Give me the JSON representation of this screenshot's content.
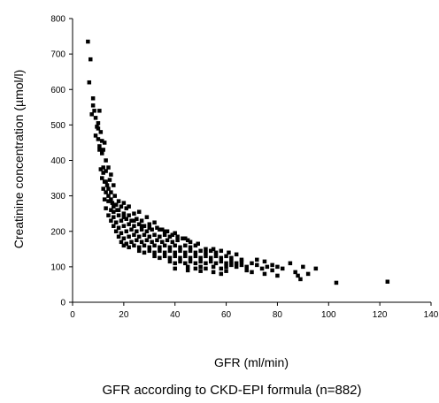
{
  "chart_data": {
    "type": "scatter",
    "title": "",
    "xlabel": "GFR (ml/min)",
    "ylabel": "Creatinine concentration  (µmol/l)",
    "caption": "GFR according to CKD-EPI formula (n=882)",
    "xlim": [
      0,
      140
    ],
    "ylim": [
      0,
      800
    ],
    "xticks": [
      0,
      20,
      40,
      60,
      80,
      100,
      120,
      140
    ],
    "yticks": [
      0,
      100,
      200,
      300,
      400,
      500,
      600,
      700,
      800
    ],
    "grid": false,
    "marker": "square",
    "marker_color": "#000000",
    "series": [
      {
        "points": [
          [
            6,
            735
          ],
          [
            7,
            685
          ],
          [
            6.5,
            620
          ],
          [
            8,
            575
          ],
          [
            8,
            555
          ],
          [
            8.5,
            540
          ],
          [
            7.5,
            530
          ],
          [
            9,
            520
          ],
          [
            9.5,
            495
          ],
          [
            10,
            490
          ],
          [
            10.5,
            540
          ],
          [
            10,
            505
          ],
          [
            9,
            470
          ],
          [
            10,
            460
          ],
          [
            11,
            480
          ],
          [
            11.5,
            455
          ],
          [
            10.5,
            440
          ],
          [
            12,
            430
          ],
          [
            12.5,
            450
          ],
          [
            13,
            400
          ],
          [
            11,
            375
          ],
          [
            12,
            365
          ],
          [
            13,
            370
          ],
          [
            14,
            380
          ],
          [
            11.5,
            350
          ],
          [
            12.5,
            340
          ],
          [
            13.5,
            330
          ],
          [
            14.5,
            345
          ],
          [
            15,
            360
          ],
          [
            12,
            320
          ],
          [
            13,
            310
          ],
          [
            14,
            300
          ],
          [
            15,
            310
          ],
          [
            16,
            330
          ],
          [
            12.5,
            290
          ],
          [
            14,
            285
          ],
          [
            15.5,
            280
          ],
          [
            16.5,
            300
          ],
          [
            17,
            275
          ],
          [
            18,
            285
          ],
          [
            13,
            265
          ],
          [
            15,
            260
          ],
          [
            16,
            255
          ],
          [
            17.5,
            260
          ],
          [
            19,
            270
          ],
          [
            20,
            280
          ],
          [
            21,
            265
          ],
          [
            22,
            270
          ],
          [
            14,
            245
          ],
          [
            16,
            240
          ],
          [
            18,
            245
          ],
          [
            20,
            250
          ],
          [
            22,
            245
          ],
          [
            24,
            250
          ],
          [
            26,
            255
          ],
          [
            15,
            230
          ],
          [
            17,
            225
          ],
          [
            19,
            230
          ],
          [
            21,
            235
          ],
          [
            23,
            230
          ],
          [
            25,
            235
          ],
          [
            27,
            230
          ],
          [
            29,
            240
          ],
          [
            16,
            215
          ],
          [
            18,
            210
          ],
          [
            20,
            215
          ],
          [
            22,
            220
          ],
          [
            24,
            215
          ],
          [
            26,
            220
          ],
          [
            28,
            215
          ],
          [
            30,
            220
          ],
          [
            32,
            225
          ],
          [
            17,
            200
          ],
          [
            19,
            195
          ],
          [
            21,
            200
          ],
          [
            23,
            205
          ],
          [
            25,
            200
          ],
          [
            27,
            205
          ],
          [
            29,
            200
          ],
          [
            31,
            205
          ],
          [
            33,
            210
          ],
          [
            35,
            205
          ],
          [
            37,
            200
          ],
          [
            18,
            185
          ],
          [
            20,
            180
          ],
          [
            22,
            185
          ],
          [
            24,
            190
          ],
          [
            26,
            185
          ],
          [
            28,
            190
          ],
          [
            30,
            185
          ],
          [
            32,
            190
          ],
          [
            34,
            185
          ],
          [
            36,
            190
          ],
          [
            38,
            185
          ],
          [
            40,
            195
          ],
          [
            19,
            170
          ],
          [
            21,
            165
          ],
          [
            23,
            170
          ],
          [
            25,
            175
          ],
          [
            27,
            170
          ],
          [
            29,
            175
          ],
          [
            31,
            170
          ],
          [
            33,
            175
          ],
          [
            35,
            170
          ],
          [
            37,
            175
          ],
          [
            39,
            170
          ],
          [
            41,
            175
          ],
          [
            43,
            180
          ],
          [
            45,
            175
          ],
          [
            20,
            160
          ],
          [
            22,
            155
          ],
          [
            24,
            160
          ],
          [
            26,
            155
          ],
          [
            28,
            160
          ],
          [
            30,
            155
          ],
          [
            32,
            160
          ],
          [
            34,
            155
          ],
          [
            36,
            160
          ],
          [
            38,
            155
          ],
          [
            40,
            160
          ],
          [
            42,
            155
          ],
          [
            44,
            160
          ],
          [
            46,
            155
          ],
          [
            48,
            160
          ],
          [
            26,
            145
          ],
          [
            28,
            140
          ],
          [
            30,
            145
          ],
          [
            32,
            140
          ],
          [
            34,
            145
          ],
          [
            36,
            140
          ],
          [
            38,
            145
          ],
          [
            40,
            140
          ],
          [
            42,
            145
          ],
          [
            44,
            140
          ],
          [
            46,
            145
          ],
          [
            48,
            140
          ],
          [
            50,
            145
          ],
          [
            52,
            140
          ],
          [
            54,
            145
          ],
          [
            56,
            140
          ],
          [
            32,
            130
          ],
          [
            34,
            125
          ],
          [
            36,
            130
          ],
          [
            38,
            125
          ],
          [
            40,
            130
          ],
          [
            42,
            125
          ],
          [
            44,
            130
          ],
          [
            46,
            125
          ],
          [
            48,
            130
          ],
          [
            50,
            125
          ],
          [
            52,
            130
          ],
          [
            54,
            125
          ],
          [
            56,
            130
          ],
          [
            58,
            125
          ],
          [
            60,
            130
          ],
          [
            62,
            125
          ],
          [
            38,
            115
          ],
          [
            40,
            110
          ],
          [
            42,
            115
          ],
          [
            44,
            110
          ],
          [
            46,
            115
          ],
          [
            48,
            110
          ],
          [
            50,
            115
          ],
          [
            52,
            110
          ],
          [
            54,
            115
          ],
          [
            56,
            110
          ],
          [
            58,
            115
          ],
          [
            60,
            110
          ],
          [
            62,
            115
          ],
          [
            64,
            110
          ],
          [
            66,
            115
          ],
          [
            45,
            100
          ],
          [
            48,
            95
          ],
          [
            50,
            100
          ],
          [
            52,
            95
          ],
          [
            55,
            100
          ],
          [
            58,
            95
          ],
          [
            60,
            100
          ],
          [
            62,
            105
          ],
          [
            64,
            100
          ],
          [
            66,
            105
          ],
          [
            68,
            100
          ],
          [
            55,
            85
          ],
          [
            58,
            80
          ],
          [
            60,
            88
          ],
          [
            45,
            90
          ],
          [
            50,
            88
          ],
          [
            40,
            95
          ],
          [
            70,
            110
          ],
          [
            72,
            105
          ],
          [
            74,
            95
          ],
          [
            76,
            100
          ],
          [
            78,
            90
          ],
          [
            70,
            85
          ],
          [
            75,
            80
          ],
          [
            80,
            75
          ],
          [
            68,
            90
          ],
          [
            72,
            120
          ],
          [
            75,
            115
          ],
          [
            78,
            105
          ],
          [
            82,
            95
          ],
          [
            85,
            110
          ],
          [
            87,
            85
          ],
          [
            88,
            75
          ],
          [
            90,
            100
          ],
          [
            92,
            80
          ],
          [
            95,
            95
          ],
          [
            89,
            65
          ],
          [
            103,
            55
          ],
          [
            123,
            58
          ],
          [
            80,
            100
          ],
          [
            66,
            120
          ],
          [
            64,
            135
          ],
          [
            61,
            140
          ],
          [
            58,
            145
          ],
          [
            55,
            150
          ],
          [
            52,
            150
          ],
          [
            49,
            165
          ],
          [
            46,
            170
          ],
          [
            44,
            180
          ],
          [
            41,
            185
          ],
          [
            39,
            190
          ],
          [
            36,
            200
          ],
          [
            34,
            205
          ],
          [
            30,
            210
          ],
          [
            27,
            215
          ],
          [
            24,
            230
          ],
          [
            20,
            240
          ],
          [
            18,
            260
          ],
          [
            16,
            270
          ],
          [
            15,
            290
          ],
          [
            14,
            320
          ],
          [
            13,
            340
          ],
          [
            12,
            380
          ],
          [
            11.5,
            420
          ],
          [
            10.5,
            430
          ]
        ]
      }
    ]
  }
}
